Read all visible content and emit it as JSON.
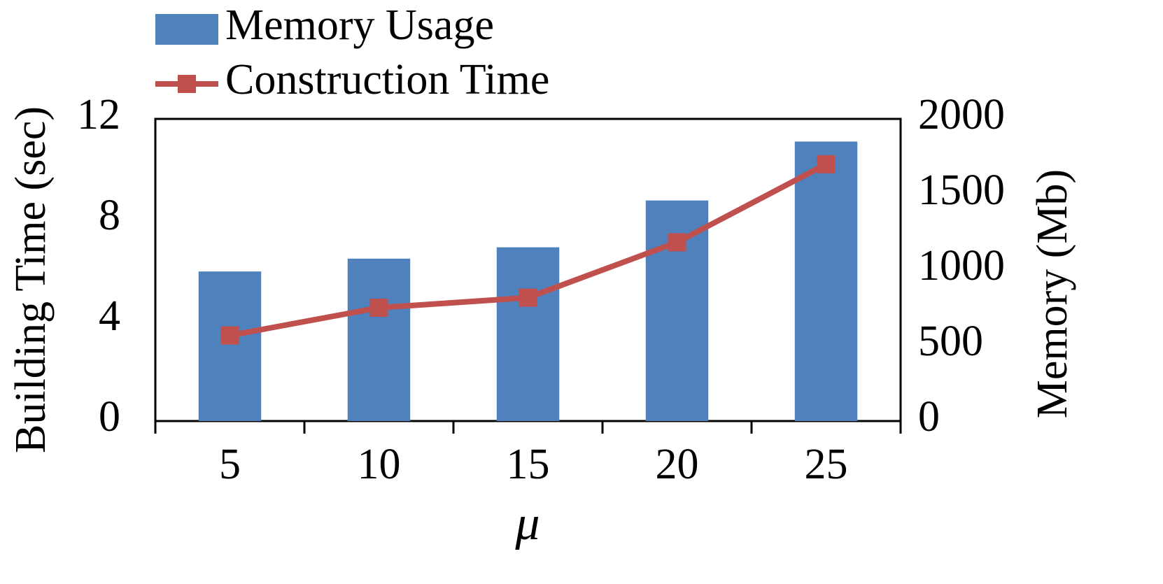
{
  "chart_data": {
    "type": "combo",
    "x_label": "μ",
    "y_label": "Building Time (sec)",
    "y2_label": "Memory (Mb)",
    "categories": [
      "5",
      "10",
      "15",
      "20",
      "25"
    ],
    "series": [
      {
        "name": "Memory Usage",
        "type": "bar",
        "axis": "y2",
        "color": "#4f81bd",
        "values": [
          990,
          1075,
          1150,
          1460,
          1850
        ]
      },
      {
        "name": "Construction Time",
        "type": "line",
        "axis": "y",
        "color": "#c0504d",
        "values": [
          3.4,
          4.5,
          4.9,
          7.1,
          10.2
        ]
      }
    ],
    "ylim": [
      0,
      12
    ],
    "yticks": [
      0,
      4,
      8,
      12
    ],
    "y2lim": [
      0,
      2000
    ],
    "y2ticks": [
      0,
      500,
      1000,
      1500,
      2000
    ],
    "grid": false,
    "legend": "top"
  }
}
